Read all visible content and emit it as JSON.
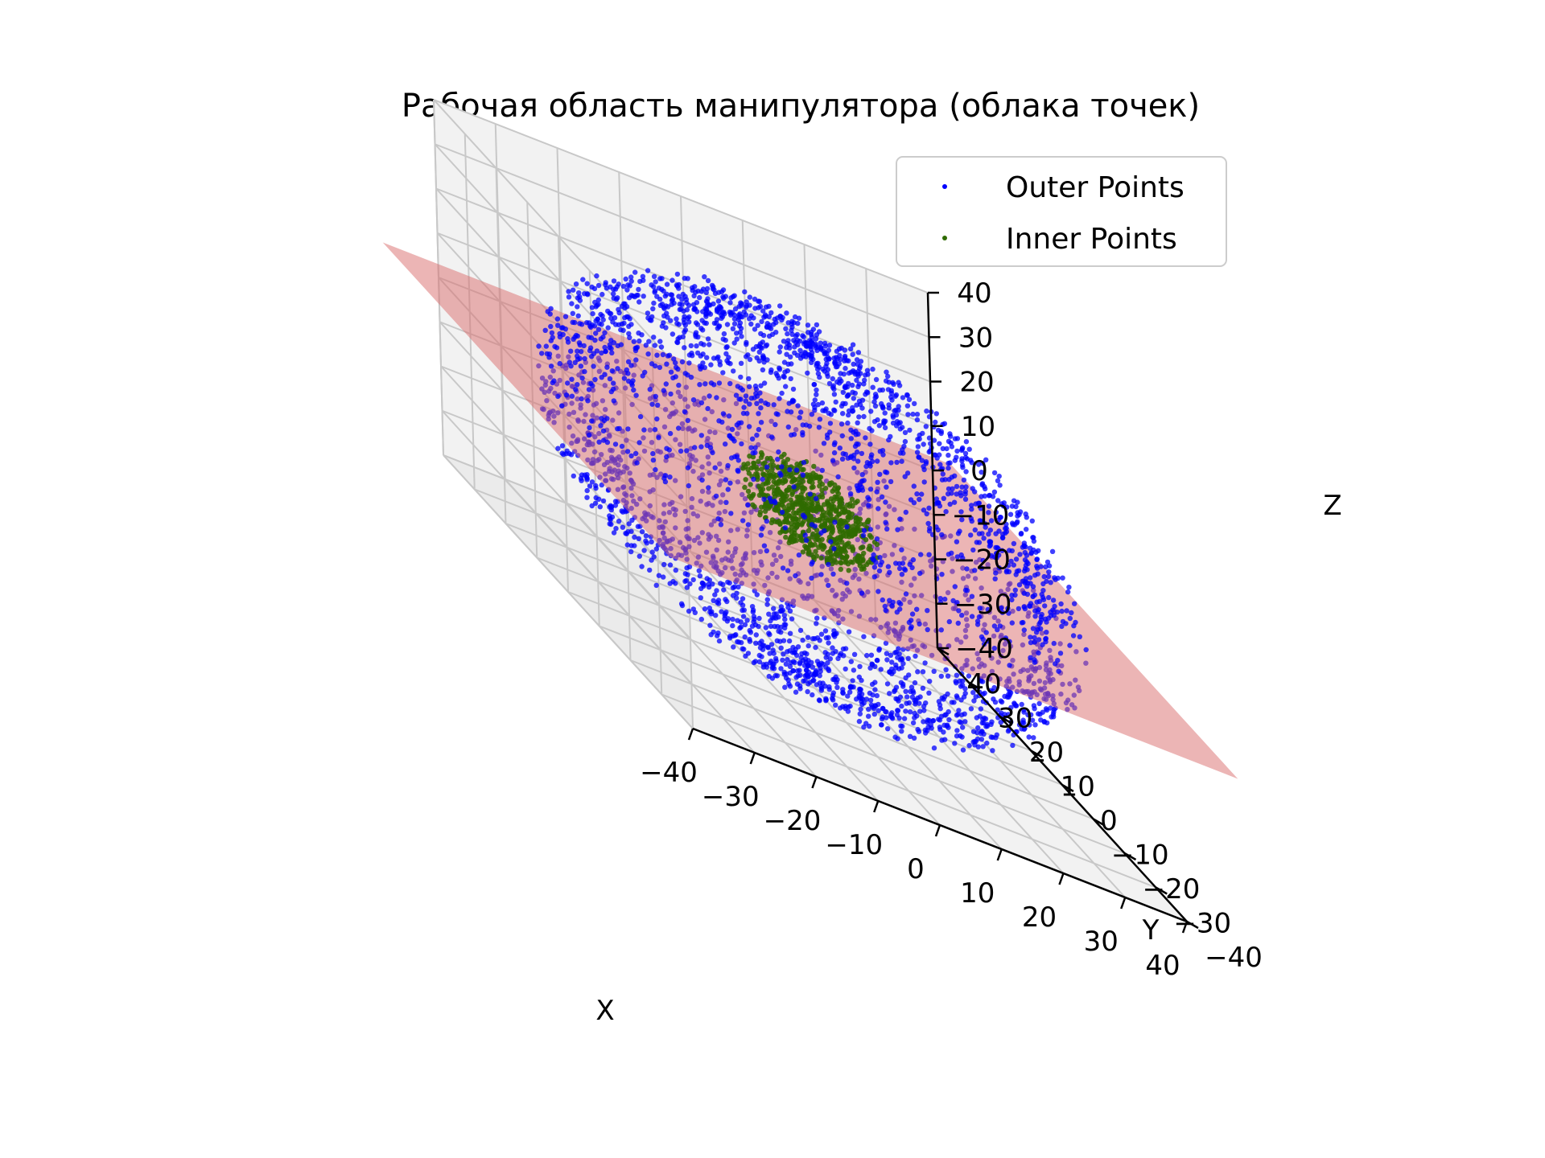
{
  "chart_data": {
    "type": "scatter",
    "title": "Рабочая область манипулятора (облака точек)",
    "xlabel": "X",
    "ylabel": "Y",
    "zlabel": "Z",
    "xlim": [
      -40,
      40
    ],
    "ylim": [
      -40,
      40
    ],
    "zlim": [
      -40,
      40
    ],
    "xticks": [
      "−40",
      "−30",
      "−20",
      "−10",
      "0",
      "10",
      "20",
      "30",
      "40"
    ],
    "yticks": [
      "−40",
      "−30",
      "−20",
      "−10",
      "0",
      "10",
      "20",
      "30",
      "40"
    ],
    "zticks": [
      "−40",
      "−30",
      "−20",
      "−10",
      "0",
      "10",
      "20",
      "30",
      "40"
    ],
    "grid": true,
    "legend_position": "top-right",
    "series": [
      {
        "name": "Outer Points",
        "color": "#0000ff",
        "shape": "shell",
        "radius_range": [
          30,
          40
        ]
      },
      {
        "name": "Inner Points",
        "color": "#2f6b00",
        "shape": "ball",
        "radius_range": [
          0,
          10
        ]
      }
    ],
    "plane": {
      "z": 0,
      "color": "#d96b6b",
      "opacity": 0.5
    }
  }
}
